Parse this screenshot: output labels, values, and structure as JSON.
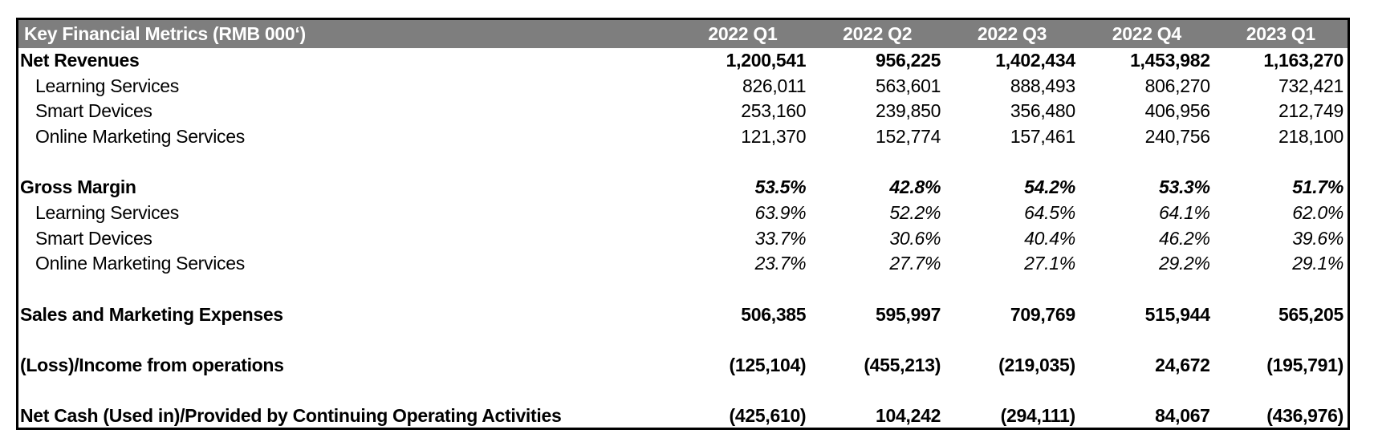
{
  "table": {
    "header": {
      "title": "Key Financial Metrics (RMB 000‘)",
      "columns": [
        "2022 Q1",
        "2022 Q2",
        "2022 Q3",
        "2022 Q4",
        "2023 Q1"
      ]
    },
    "rows": [
      {
        "type": "section",
        "label": "Net Revenues",
        "values": [
          "1,200,541",
          "956,225",
          "1,402,434",
          "1,453,982",
          "1,163,270"
        ]
      },
      {
        "type": "sub",
        "label": "Learning Services",
        "values": [
          "826,011",
          "563,601",
          "888,493",
          "806,270",
          "732,421"
        ]
      },
      {
        "type": "sub",
        "label": "Smart Devices",
        "values": [
          "253,160",
          "239,850",
          "356,480",
          "406,956",
          "212,749"
        ]
      },
      {
        "type": "sub",
        "label": "Online Marketing Services",
        "values": [
          "121,370",
          "152,774",
          "157,461",
          "240,756",
          "218,100"
        ]
      },
      {
        "type": "blank",
        "label": "",
        "values": [
          "",
          "",
          "",
          "",
          ""
        ]
      },
      {
        "type": "section-pct",
        "label": "Gross Margin",
        "values": [
          "53.5%",
          "42.8%",
          "54.2%",
          "53.3%",
          "51.7%"
        ]
      },
      {
        "type": "sub-pct",
        "label": "Learning Services",
        "values": [
          "63.9%",
          "52.2%",
          "64.5%",
          "64.1%",
          "62.0%"
        ]
      },
      {
        "type": "sub-pct",
        "label": "Smart Devices",
        "values": [
          "33.7%",
          "30.6%",
          "40.4%",
          "46.2%",
          "39.6%"
        ]
      },
      {
        "type": "sub-pct",
        "label": "Online Marketing Services",
        "values": [
          "23.7%",
          "27.7%",
          "27.1%",
          "29.2%",
          "29.1%"
        ]
      },
      {
        "type": "blank",
        "label": "",
        "values": [
          "",
          "",
          "",
          "",
          ""
        ]
      },
      {
        "type": "section",
        "label": "Sales and Marketing Expenses",
        "values": [
          "506,385",
          "595,997",
          "709,769",
          "515,944",
          "565,205"
        ]
      },
      {
        "type": "blank",
        "label": "",
        "values": [
          "",
          "",
          "",
          "",
          ""
        ]
      },
      {
        "type": "section",
        "label": "(Loss)/Income from operations",
        "values": [
          "(125,104)",
          "(455,213)",
          "(219,035)",
          "24,672",
          "(195,791)"
        ]
      },
      {
        "type": "blank",
        "label": "",
        "values": [
          "",
          "",
          "",
          "",
          ""
        ]
      },
      {
        "type": "section",
        "label": "Net Cash (Used in)/Provided by Continuing Operating Activities",
        "values": [
          "(425,610)",
          "104,242",
          "(294,111)",
          "84,067",
          "(436,976)"
        ]
      }
    ],
    "colors": {
      "header_bg": "#7e7e7e",
      "header_text": "#ffffff",
      "body_text": "#000000",
      "border": "#000000"
    }
  },
  "chart_data": {
    "type": "table",
    "title": "Key Financial Metrics (RMB 000‘)",
    "categories": [
      "2022 Q1",
      "2022 Q2",
      "2022 Q3",
      "2022 Q4",
      "2023 Q1"
    ],
    "series": [
      {
        "name": "Net Revenues",
        "unit": "RMB 000",
        "values": [
          1200541,
          956225,
          1402434,
          1453982,
          1163270
        ]
      },
      {
        "name": "Net Revenues - Learning Services",
        "unit": "RMB 000",
        "values": [
          826011,
          563601,
          888493,
          806270,
          732421
        ]
      },
      {
        "name": "Net Revenues - Smart Devices",
        "unit": "RMB 000",
        "values": [
          253160,
          239850,
          356480,
          406956,
          212749
        ]
      },
      {
        "name": "Net Revenues - Online Marketing Services",
        "unit": "RMB 000",
        "values": [
          121370,
          152774,
          157461,
          240756,
          218100
        ]
      },
      {
        "name": "Gross Margin",
        "unit": "%",
        "values": [
          53.5,
          42.8,
          54.2,
          53.3,
          51.7
        ]
      },
      {
        "name": "Gross Margin - Learning Services",
        "unit": "%",
        "values": [
          63.9,
          52.2,
          64.5,
          64.1,
          62.0
        ]
      },
      {
        "name": "Gross Margin - Smart Devices",
        "unit": "%",
        "values": [
          33.7,
          30.6,
          40.4,
          46.2,
          39.6
        ]
      },
      {
        "name": "Gross Margin - Online Marketing Services",
        "unit": "%",
        "values": [
          23.7,
          27.7,
          27.1,
          29.2,
          29.1
        ]
      },
      {
        "name": "Sales and Marketing Expenses",
        "unit": "RMB 000",
        "values": [
          506385,
          595997,
          709769,
          515944,
          565205
        ]
      },
      {
        "name": "(Loss)/Income from operations",
        "unit": "RMB 000",
        "values": [
          -125104,
          -455213,
          -219035,
          24672,
          -195791
        ]
      },
      {
        "name": "Net Cash (Used in)/Provided by Continuing Operating Activities",
        "unit": "RMB 000",
        "values": [
          -425610,
          104242,
          -294111,
          84067,
          -436976
        ]
      }
    ]
  }
}
